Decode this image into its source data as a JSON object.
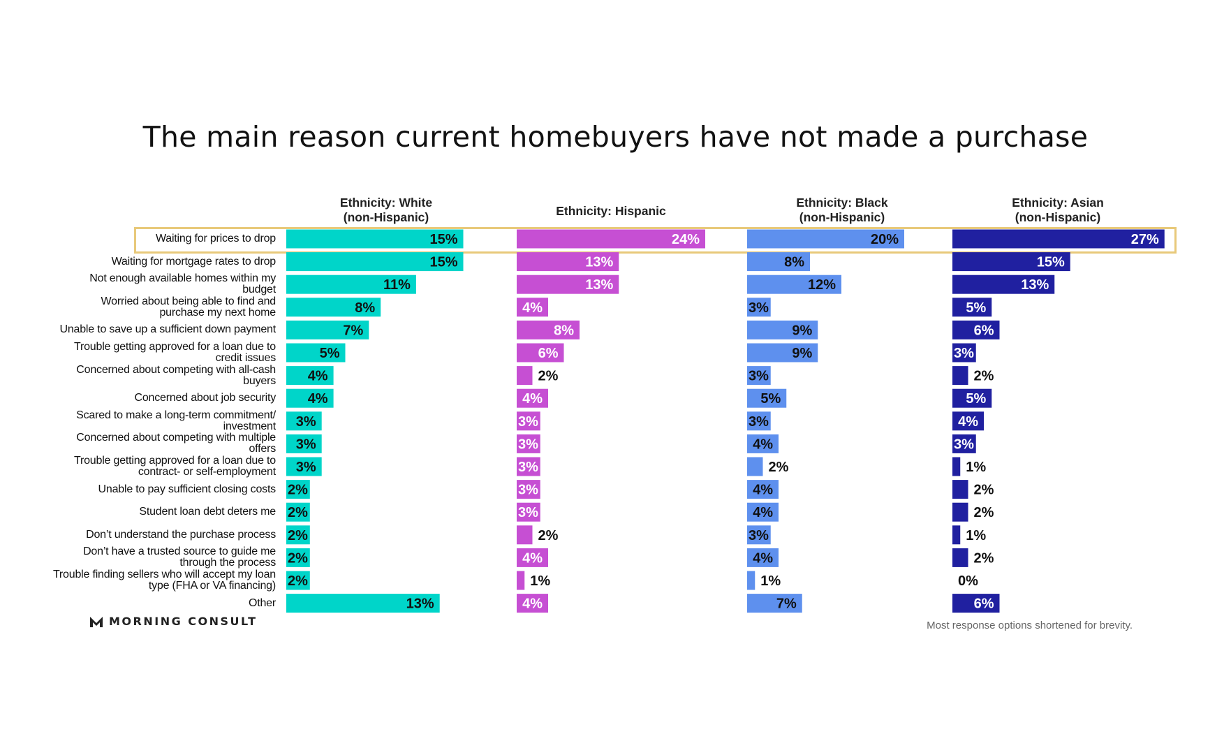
{
  "title": "The main reason current homebuyers have not made a purchase",
  "footnote": "Most response options shortened for brevity.",
  "logo_text": "MORNING CONSULT",
  "highlight_color": "#e8c97a",
  "chart_data": {
    "type": "bar",
    "orientation": "horizontal",
    "title": "The main reason current homebuyers have not made a purchase",
    "unit": "%",
    "highlighted_category": "Waiting for prices to drop",
    "categories": [
      "Waiting for prices to drop",
      "Waiting for mortgage rates to drop",
      "Not enough available homes within my\nbudget",
      "Worried about being able to find and\npurchase my next home",
      "Unable to save up a sufficient down payment",
      "Trouble getting approved for a loan due to\ncredit issues",
      "Concerned about competing with all-cash\nbuyers",
      "Concerned about job security",
      "Scared to make a long-term commitment/\ninvestment",
      "Concerned about competing with multiple\noffers",
      "Trouble getting approved for a loan due to\ncontract- or self-employment",
      "Unable to pay sufficient closing costs",
      "Student loan debt deters me",
      "Don’t understand the purchase process",
      "Don’t have a trusted source to guide me\nthrough the process",
      "Trouble finding sellers who will accept my loan\ntype (FHA or VA financing)",
      "Other"
    ],
    "series": [
      {
        "name": "Ethnicity: White\n(non-Hispanic)",
        "color": "#00d5c9",
        "values": [
          15,
          15,
          11,
          8,
          7,
          5,
          4,
          4,
          3,
          3,
          3,
          2,
          2,
          2,
          2,
          2,
          13
        ]
      },
      {
        "name": "Ethnicity: Hispanic",
        "color": "#c64fd3",
        "values": [
          24,
          13,
          13,
          4,
          8,
          6,
          2,
          4,
          3,
          3,
          3,
          3,
          3,
          2,
          4,
          1,
          4
        ]
      },
      {
        "name": "Ethnicity: Black\n(non-Hispanic)",
        "color": "#5e90ee",
        "values": [
          20,
          8,
          12,
          3,
          9,
          9,
          3,
          5,
          3,
          4,
          2,
          4,
          4,
          3,
          4,
          1,
          7
        ]
      },
      {
        "name": "Ethnicity: Asian\n(non-Hispanic)",
        "color": "#2020a0",
        "values": [
          27,
          15,
          13,
          5,
          6,
          3,
          2,
          5,
          4,
          3,
          1,
          2,
          2,
          1,
          2,
          0,
          6
        ]
      }
    ]
  }
}
